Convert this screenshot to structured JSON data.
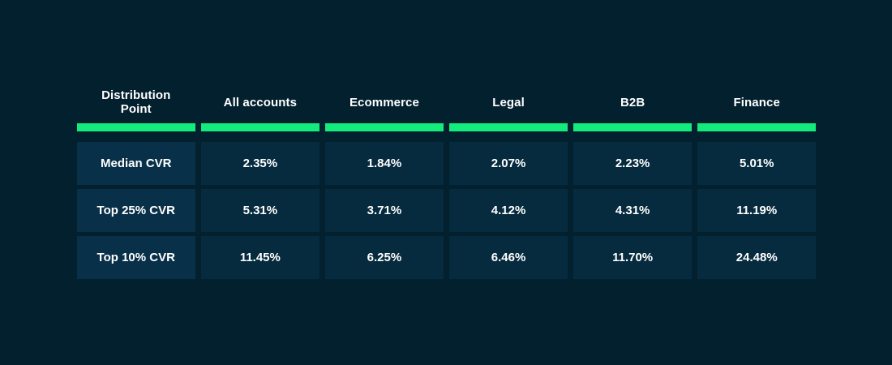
{
  "chart_data": {
    "type": "table",
    "columns": [
      "Distribution Point",
      "All accounts",
      "Ecommerce",
      "Legal",
      "B2B",
      "Finance"
    ],
    "rows": [
      {
        "label": "Median CVR",
        "values": [
          "2.35%",
          "1.84%",
          "2.07%",
          "2.23%",
          "5.01%"
        ]
      },
      {
        "label": "Top 25% CVR",
        "values": [
          "5.31%",
          "3.71%",
          "4.12%",
          "4.31%",
          "11.19%"
        ]
      },
      {
        "label": "Top 10% CVR",
        "values": [
          "11.45%",
          "6.25%",
          "6.46%",
          "11.70%",
          "24.48%"
        ]
      }
    ]
  },
  "colors": {
    "background": "#03202f",
    "accent": "#13ec7c",
    "cell": "#062b3e",
    "label_cell": "#083049",
    "text": "#ffffff"
  }
}
